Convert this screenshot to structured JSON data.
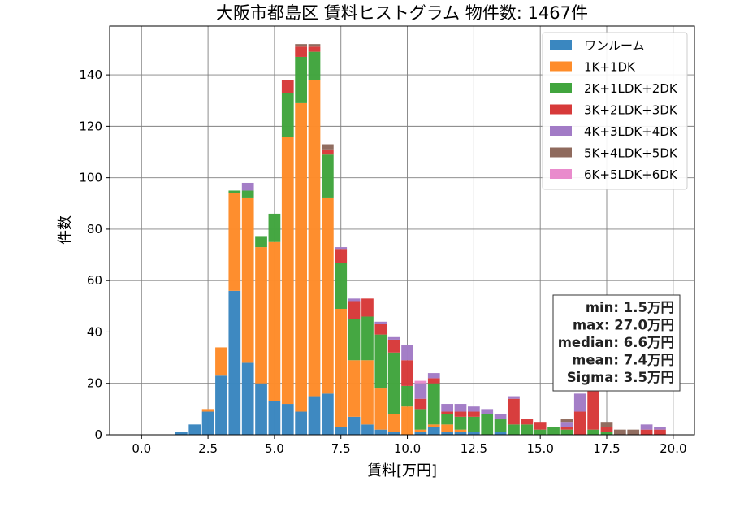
{
  "chart_data": {
    "type": "bar",
    "stacked": true,
    "title": "大阪市都島区 賃料ヒストグラム 物件数: 1467件",
    "xlabel": "賃料[万円]",
    "ylabel": "件数",
    "xlim": [
      -1.2,
      20.8
    ],
    "ylim": [
      0,
      159
    ],
    "xticks": [
      "0.0",
      "2.5",
      "5.0",
      "7.5",
      "10.0",
      "12.5",
      "15.0",
      "17.5",
      "20.0"
    ],
    "yticks": [
      "0",
      "20",
      "40",
      "60",
      "80",
      "100",
      "120",
      "140"
    ],
    "grid": true,
    "legend_position": "top-right",
    "bin_width": 0.5,
    "bin_starts": [
      1.25,
      1.75,
      2.25,
      2.75,
      3.25,
      3.75,
      4.25,
      4.75,
      5.25,
      5.75,
      6.25,
      6.75,
      7.25,
      7.75,
      8.25,
      8.75,
      9.25,
      9.75,
      10.25,
      10.75,
      11.25,
      11.75,
      12.25,
      12.75,
      13.25,
      13.75,
      14.25,
      14.75,
      15.25,
      15.75,
      16.25,
      16.75,
      17.25,
      17.75,
      18.25,
      18.75,
      19.25
    ],
    "series": [
      {
        "name": "ワンルーム",
        "color": "#3a87c0",
        "values": [
          1,
          4,
          9,
          23,
          56,
          28,
          20,
          13,
          12,
          9,
          15,
          16,
          3,
          7,
          4,
          2,
          1,
          0,
          1,
          3,
          1,
          1,
          1,
          0,
          1,
          0,
          0,
          0,
          0,
          0,
          0,
          0,
          0,
          0,
          0,
          0,
          0
        ]
      },
      {
        "name": "1K+1DK",
        "color": "#fe8c2a",
        "values": [
          0,
          0,
          1,
          11,
          38,
          64,
          53,
          62,
          104,
          120,
          123,
          76,
          46,
          22,
          25,
          16,
          7,
          11,
          1,
          1,
          3,
          1,
          0,
          0,
          0,
          0,
          0,
          0,
          0,
          0,
          0,
          0,
          0,
          0,
          0,
          0,
          0
        ]
      },
      {
        "name": "2K+1LDK+2DK",
        "color": "#41a53e",
        "values": [
          0,
          0,
          0,
          0,
          1,
          3,
          4,
          11,
          17,
          18,
          11,
          17,
          18,
          16,
          17,
          21,
          24,
          8,
          8,
          16,
          4,
          5,
          6,
          8,
          5,
          4,
          4,
          2,
          3,
          2,
          0,
          2,
          1,
          0,
          0,
          0,
          0
        ]
      },
      {
        "name": "3K+2LDK+3DK",
        "color": "#d73a3a",
        "values": [
          0,
          0,
          0,
          0,
          0,
          0,
          0,
          0,
          5,
          4,
          2,
          2,
          5,
          7,
          7,
          4,
          5,
          10,
          4,
          2,
          1,
          2,
          2,
          0,
          0,
          10,
          2,
          3,
          0,
          1,
          9,
          18,
          2,
          0,
          0,
          2,
          2
        ]
      },
      {
        "name": "4K+3LDK+4DK",
        "color": "#a27bc6",
        "values": [
          0,
          0,
          0,
          0,
          0,
          3,
          0,
          0,
          0,
          0,
          0,
          0,
          1,
          1,
          0,
          1,
          1,
          6,
          6,
          2,
          3,
          3,
          2,
          2,
          2,
          1,
          0,
          0,
          0,
          2,
          7,
          2,
          0,
          0,
          0,
          2,
          1
        ]
      },
      {
        "name": "5K+4LDK+5DK",
        "color": "#8f6a5d",
        "values": [
          0,
          0,
          0,
          0,
          0,
          0,
          0,
          0,
          0,
          1,
          1,
          2,
          0,
          0,
          0,
          0,
          0,
          0,
          0,
          0,
          0,
          0,
          0,
          0,
          0,
          0,
          0,
          0,
          0,
          1,
          0,
          0,
          2,
          2,
          2,
          0,
          0
        ]
      },
      {
        "name": "6K+5LDK+6DK",
        "color": "#e98bcc",
        "values": [
          0,
          0,
          0,
          0,
          0,
          0,
          0,
          0,
          0,
          0,
          0,
          0,
          0,
          0,
          0,
          0,
          0,
          0,
          1,
          0,
          0,
          0,
          0,
          0,
          0,
          0,
          0,
          0,
          0,
          0,
          0,
          0,
          0,
          0,
          0,
          0,
          0
        ]
      }
    ],
    "stats_box": [
      "min: 1.5万円",
      "max: 27.0万円",
      "median: 6.6万円",
      "mean: 7.4万円",
      "Sigma: 3.5万円"
    ]
  }
}
